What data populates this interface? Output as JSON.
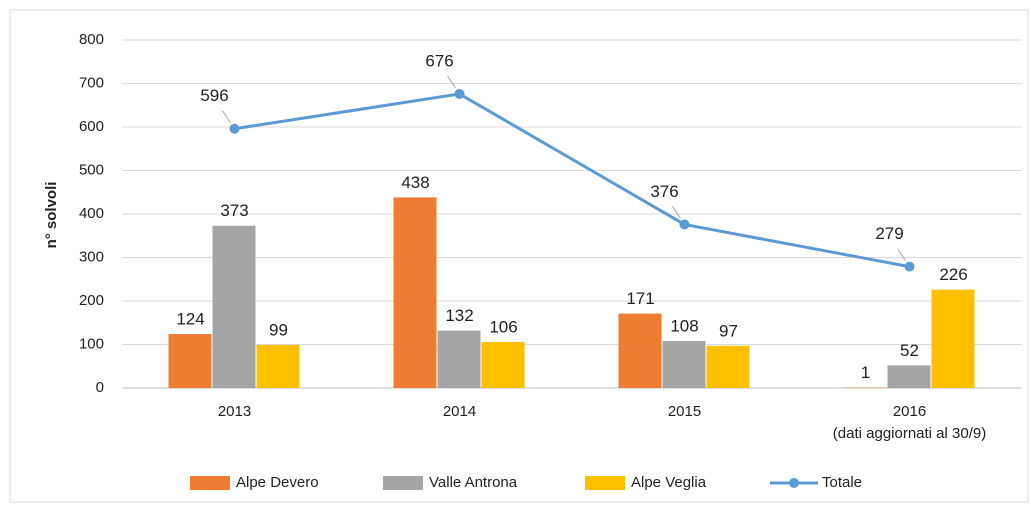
{
  "chart_data": {
    "type": "bar",
    "y_label": "n° solvoli",
    "categories": [
      "2013",
      "2014",
      "2015",
      "2016"
    ],
    "category_note": "(dati aggiornati al 30/9)",
    "series": [
      {
        "name": "Alpe Devero",
        "color": "#ed7d31",
        "values": [
          124,
          438,
          171,
          1
        ]
      },
      {
        "name": "Valle Antrona",
        "color": "#a5a5a5",
        "values": [
          373,
          132,
          108,
          52
        ]
      },
      {
        "name": "Alpe Veglia",
        "color": "#ffc000",
        "values": [
          99,
          106,
          97,
          226
        ]
      },
      {
        "name": "Totale",
        "color": "#5b9bd5",
        "type": "line",
        "values": [
          596,
          676,
          376,
          279
        ]
      }
    ],
    "ylim": [
      0,
      800
    ],
    "yticks": [
      0,
      100,
      200,
      300,
      400,
      500,
      600,
      700,
      800
    ],
    "grid": true,
    "legend": "bottom"
  }
}
